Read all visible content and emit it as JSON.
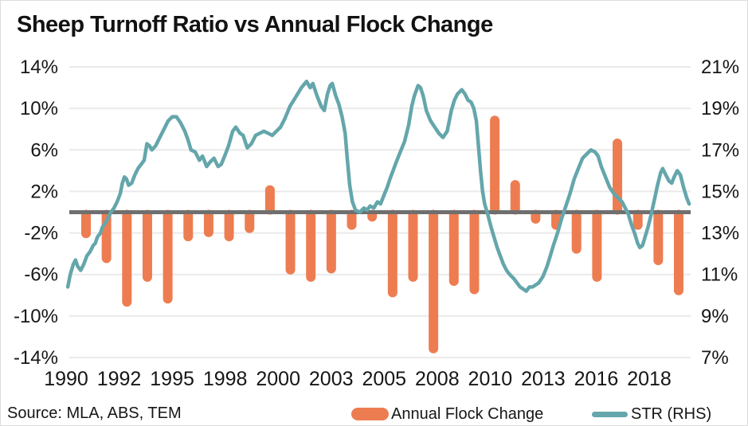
{
  "title": "Sheep Turnoff Ratio vs Annual Flock Change",
  "source": "Source: MLA, ABS, TEM",
  "colors": {
    "bar": "#ED7D51",
    "line": "#64A6AB",
    "zero_line": "#6F6F6F",
    "gridline": "#EAEAEA",
    "text": "#161616"
  },
  "legend": [
    {
      "label": "Annual Flock Change",
      "type": "bar"
    },
    {
      "label": "STR (RHS)",
      "type": "line"
    }
  ],
  "chart_data": {
    "type": "combo",
    "grid": true,
    "zero_line": true,
    "x_axis": {
      "labels": [
        "1990",
        "1992",
        "1995",
        "1998",
        "2000",
        "2003",
        "2005",
        "2008",
        "2010",
        "2013",
        "2016",
        "2018"
      ]
    },
    "left_axis": {
      "title": "Annual Flock Change",
      "range": [
        -14,
        14
      ],
      "tick_labels": [
        "14%",
        "10%",
        "6%",
        "2%",
        "-2%",
        "-6%",
        "-10%",
        "-14%"
      ],
      "tick_values": [
        14,
        10,
        6,
        2,
        -2,
        -6,
        -10,
        -14
      ]
    },
    "right_axis": {
      "title": "STR",
      "range": [
        7,
        21
      ],
      "tick_labels": [
        "21%",
        "19%",
        "17%",
        "15%",
        "13%",
        "11%",
        "9%",
        "7%"
      ],
      "tick_values": [
        21,
        19,
        17,
        15,
        13,
        11,
        9,
        7
      ]
    },
    "series": [
      {
        "name": "Annual Flock Change",
        "type": "bar",
        "axis": "left",
        "unit": "%",
        "years": [
          1990,
          1991,
          1992,
          1993,
          1994,
          1995,
          1996,
          1997,
          1998,
          1999,
          2000,
          2001,
          2002,
          2003,
          2004,
          2005,
          2006,
          2007,
          2008,
          2009,
          2010,
          2011,
          2012,
          2013,
          2014,
          2015,
          2016,
          2017,
          2018,
          2019
        ],
        "values": [
          -2.5,
          -4.9,
          -9.1,
          -6.7,
          -8.8,
          -2.8,
          -2.4,
          -2.8,
          -2.0,
          2.6,
          -6.0,
          -6.7,
          -5.9,
          -1.7,
          -0.9,
          -8.2,
          -6.7,
          -13.6,
          -7.1,
          -7.9,
          9.3,
          3.1,
          -1.1,
          -1.7,
          -4.0,
          -6.7,
          7.1,
          -1.7,
          -5.1,
          -8.0
        ]
      },
      {
        "name": "STR (RHS)",
        "type": "line",
        "axis": "right",
        "unit": "%",
        "points": [
          [
            1990.08,
            10.4
          ],
          [
            1990.2,
            11.0
          ],
          [
            1990.35,
            11.5
          ],
          [
            1990.45,
            11.7
          ],
          [
            1990.55,
            11.4
          ],
          [
            1990.7,
            11.2
          ],
          [
            1990.85,
            11.5
          ],
          [
            1991.0,
            11.9
          ],
          [
            1991.15,
            12.1
          ],
          [
            1991.3,
            12.4
          ],
          [
            1991.4,
            12.5
          ],
          [
            1991.5,
            12.8
          ],
          [
            1991.65,
            13.0
          ],
          [
            1991.75,
            13.3
          ],
          [
            1991.9,
            13.5
          ],
          [
            1992.0,
            13.7
          ],
          [
            1992.15,
            14.0
          ],
          [
            1992.3,
            14.2
          ],
          [
            1992.45,
            14.5
          ],
          [
            1992.6,
            14.9
          ],
          [
            1992.7,
            15.4
          ],
          [
            1992.8,
            15.7
          ],
          [
            1992.9,
            15.6
          ],
          [
            1993.0,
            15.3
          ],
          [
            1993.15,
            15.4
          ],
          [
            1993.3,
            15.8
          ],
          [
            1993.45,
            16.1
          ],
          [
            1993.6,
            16.3
          ],
          [
            1993.75,
            16.5
          ],
          [
            1993.88,
            17.3
          ],
          [
            1994.0,
            17.2
          ],
          [
            1994.12,
            17.0
          ],
          [
            1994.3,
            17.2
          ],
          [
            1994.5,
            17.6
          ],
          [
            1994.7,
            18.0
          ],
          [
            1994.9,
            18.4
          ],
          [
            1995.1,
            18.6
          ],
          [
            1995.3,
            18.6
          ],
          [
            1995.5,
            18.3
          ],
          [
            1995.7,
            17.9
          ],
          [
            1995.85,
            17.5
          ],
          [
            1996.0,
            17.0
          ],
          [
            1996.2,
            16.9
          ],
          [
            1996.4,
            16.5
          ],
          [
            1996.55,
            16.7
          ],
          [
            1996.75,
            16.2
          ],
          [
            1996.9,
            16.4
          ],
          [
            1997.1,
            16.6
          ],
          [
            1997.3,
            16.2
          ],
          [
            1997.45,
            16.3
          ],
          [
            1997.65,
            16.8
          ],
          [
            1997.8,
            17.2
          ],
          [
            1998.0,
            17.9
          ],
          [
            1998.15,
            18.1
          ],
          [
            1998.35,
            17.8
          ],
          [
            1998.5,
            17.7
          ],
          [
            1998.7,
            17.1
          ],
          [
            1998.9,
            17.3
          ],
          [
            1999.1,
            17.7
          ],
          [
            1999.3,
            17.8
          ],
          [
            1999.5,
            17.9
          ],
          [
            1999.7,
            17.8
          ],
          [
            1999.9,
            17.7
          ],
          [
            2000.1,
            17.9
          ],
          [
            2000.3,
            18.1
          ],
          [
            2000.5,
            18.5
          ],
          [
            2000.75,
            19.1
          ],
          [
            2001.0,
            19.5
          ],
          [
            2001.3,
            20.0
          ],
          [
            2001.55,
            20.3
          ],
          [
            2001.72,
            20.0
          ],
          [
            2001.85,
            20.2
          ],
          [
            2002.05,
            19.6
          ],
          [
            2002.25,
            19.1
          ],
          [
            2002.4,
            18.9
          ],
          [
            2002.55,
            19.7
          ],
          [
            2002.68,
            20.1
          ],
          [
            2002.78,
            20.2
          ],
          [
            2002.95,
            19.6
          ],
          [
            2003.1,
            19.2
          ],
          [
            2003.25,
            18.6
          ],
          [
            2003.4,
            17.8
          ],
          [
            2003.5,
            16.6
          ],
          [
            2003.62,
            15.3
          ],
          [
            2003.75,
            14.5
          ],
          [
            2003.9,
            14.1
          ],
          [
            2004.1,
            14.0
          ],
          [
            2004.3,
            14.2
          ],
          [
            2004.45,
            14.1
          ],
          [
            2004.6,
            14.3
          ],
          [
            2004.78,
            14.2
          ],
          [
            2004.95,
            14.5
          ],
          [
            2005.1,
            14.4
          ],
          [
            2005.3,
            14.9
          ],
          [
            2005.42,
            15.2
          ],
          [
            2005.55,
            15.6
          ],
          [
            2005.7,
            16.0
          ],
          [
            2005.85,
            16.4
          ],
          [
            2006.05,
            16.9
          ],
          [
            2006.25,
            17.4
          ],
          [
            2006.45,
            18.2
          ],
          [
            2006.6,
            19.1
          ],
          [
            2006.72,
            19.6
          ],
          [
            2006.9,
            20.1
          ],
          [
            2007.02,
            20.0
          ],
          [
            2007.15,
            19.6
          ],
          [
            2007.3,
            18.9
          ],
          [
            2007.5,
            18.4
          ],
          [
            2007.7,
            18.1
          ],
          [
            2007.9,
            17.8
          ],
          [
            2008.1,
            17.6
          ],
          [
            2008.3,
            17.9
          ],
          [
            2008.5,
            18.9
          ],
          [
            2008.65,
            19.4
          ],
          [
            2008.8,
            19.7
          ],
          [
            2009.0,
            19.9
          ],
          [
            2009.15,
            19.7
          ],
          [
            2009.3,
            19.4
          ],
          [
            2009.45,
            19.3
          ],
          [
            2009.58,
            19.0
          ],
          [
            2009.7,
            18.4
          ],
          [
            2009.8,
            17.2
          ],
          [
            2009.9,
            16.0
          ],
          [
            2010.0,
            15.0
          ],
          [
            2010.1,
            14.4
          ],
          [
            2010.25,
            13.9
          ],
          [
            2010.4,
            13.3
          ],
          [
            2010.55,
            12.8
          ],
          [
            2010.7,
            12.3
          ],
          [
            2010.85,
            11.9
          ],
          [
            2011.0,
            11.5
          ],
          [
            2011.15,
            11.2
          ],
          [
            2011.3,
            11.0
          ],
          [
            2011.5,
            10.8
          ],
          [
            2011.65,
            10.6
          ],
          [
            2011.8,
            10.4
          ],
          [
            2011.95,
            10.3
          ],
          [
            2012.1,
            10.2
          ],
          [
            2012.25,
            10.4
          ],
          [
            2012.4,
            10.4
          ],
          [
            2012.55,
            10.5
          ],
          [
            2012.7,
            10.6
          ],
          [
            2012.9,
            10.9
          ],
          [
            2013.1,
            11.4
          ],
          [
            2013.25,
            11.9
          ],
          [
            2013.4,
            12.4
          ],
          [
            2013.6,
            13.0
          ],
          [
            2013.8,
            13.7
          ],
          [
            2014.0,
            14.3
          ],
          [
            2014.2,
            14.9
          ],
          [
            2014.4,
            15.6
          ],
          [
            2014.6,
            16.1
          ],
          [
            2014.8,
            16.6
          ],
          [
            2015.0,
            16.8
          ],
          [
            2015.2,
            17.0
          ],
          [
            2015.4,
            16.9
          ],
          [
            2015.55,
            16.7
          ],
          [
            2015.7,
            16.2
          ],
          [
            2015.9,
            15.7
          ],
          [
            2016.1,
            15.2
          ],
          [
            2016.3,
            14.9
          ],
          [
            2016.5,
            14.7
          ],
          [
            2016.7,
            14.5
          ],
          [
            2016.85,
            14.2
          ],
          [
            2017.0,
            13.9
          ],
          [
            2017.15,
            13.4
          ],
          [
            2017.3,
            13.0
          ],
          [
            2017.45,
            12.5
          ],
          [
            2017.55,
            12.3
          ],
          [
            2017.68,
            12.4
          ],
          [
            2017.8,
            12.8
          ],
          [
            2017.95,
            13.3
          ],
          [
            2018.1,
            13.9
          ],
          [
            2018.25,
            14.6
          ],
          [
            2018.4,
            15.3
          ],
          [
            2018.55,
            15.9
          ],
          [
            2018.65,
            16.1
          ],
          [
            2018.8,
            15.8
          ],
          [
            2018.95,
            15.5
          ],
          [
            2019.08,
            15.4
          ],
          [
            2019.2,
            15.7
          ],
          [
            2019.35,
            16.0
          ],
          [
            2019.5,
            15.8
          ],
          [
            2019.65,
            15.2
          ],
          [
            2019.8,
            14.7
          ],
          [
            2019.92,
            14.4
          ]
        ]
      }
    ]
  }
}
